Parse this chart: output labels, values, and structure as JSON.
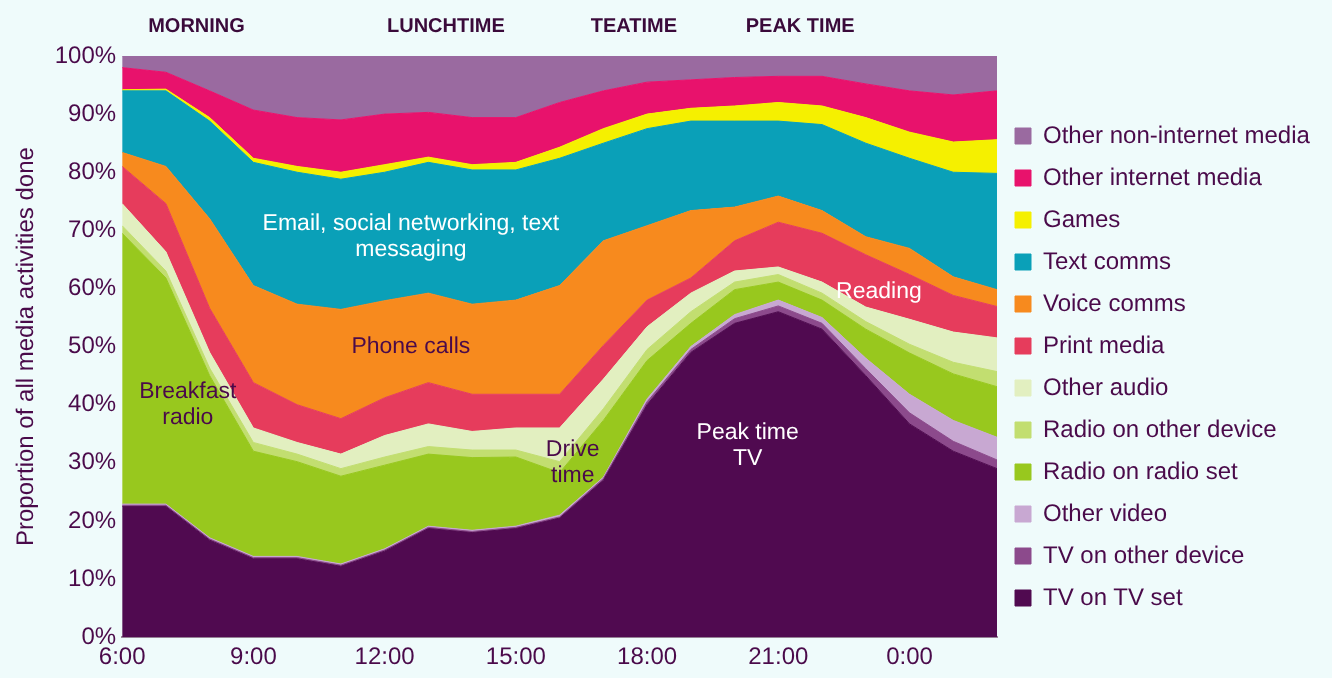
{
  "chart_data": {
    "type": "area",
    "stacked": true,
    "ylabel": "Proportion of all media activities done",
    "legend": "right",
    "grid": false,
    "marker": "none",
    "x": [
      6,
      7,
      8,
      9,
      10,
      11,
      12,
      13,
      14,
      15,
      16,
      17,
      18,
      19,
      20,
      21,
      22,
      23,
      24,
      25,
      26
    ],
    "xlim": [
      6,
      26
    ],
    "xticks": [
      {
        "value": 6,
        "label": "6:00"
      },
      {
        "value": 9,
        "label": "9:00"
      },
      {
        "value": 12,
        "label": "12:00"
      },
      {
        "value": 15,
        "label": "15:00"
      },
      {
        "value": 18,
        "label": "18:00"
      },
      {
        "value": 21,
        "label": "21:00"
      },
      {
        "value": 24,
        "label": "0:00"
      }
    ],
    "ylim": [
      0,
      100
    ],
    "yticks": [
      {
        "value": 0,
        "label": "0%"
      },
      {
        "value": 10,
        "label": "10%"
      },
      {
        "value": 20,
        "label": "20%"
      },
      {
        "value": 30,
        "label": "30%"
      },
      {
        "value": 40,
        "label": "40%"
      },
      {
        "value": 50,
        "label": "50%"
      },
      {
        "value": 60,
        "label": "60%"
      },
      {
        "value": 70,
        "label": "70%"
      },
      {
        "value": 80,
        "label": "80%"
      },
      {
        "value": 90,
        "label": "90%"
      },
      {
        "value": 100,
        "label": "100%"
      }
    ],
    "series": [
      {
        "name": "TV on TV set",
        "color": "#500a50",
        "values": [
          22.5,
          22.5,
          16.7,
          13.5,
          13.5,
          12.2,
          14.8,
          18.7,
          18,
          18.7,
          20.5,
          27,
          40,
          49,
          54,
          56,
          53,
          45,
          36.7,
          32,
          29
        ]
      },
      {
        "name": "TV on other device",
        "color": "#8c4a8c",
        "values": [
          0.2,
          0.2,
          0.2,
          0.2,
          0.2,
          0.2,
          0.2,
          0.2,
          0.2,
          0.2,
          0.2,
          0.3,
          0.5,
          0.5,
          0.8,
          1,
          1,
          1.2,
          1.9,
          1.7,
          1.5
        ]
      },
      {
        "name": "Other video",
        "color": "#c8a8d2",
        "values": [
          0.2,
          0.2,
          0.2,
          0.2,
          0.2,
          0.2,
          0.2,
          0.2,
          0.2,
          0.2,
          0.3,
          0.2,
          0.5,
          0.5,
          0.7,
          1,
          1,
          1.8,
          3.2,
          3.6,
          3.9
        ]
      },
      {
        "name": "Radio on radio set",
        "color": "#98c81e",
        "values": [
          46.6,
          38.9,
          27.9,
          18.1,
          16.3,
          15.1,
          14.4,
          12.4,
          12.5,
          11.9,
          7.3,
          9.8,
          6.6,
          4,
          4.3,
          3.1,
          3,
          5,
          7.1,
          8,
          8.7
        ]
      },
      {
        "name": "Radio on other device",
        "color": "#c2de70",
        "values": [
          1.3,
          1.2,
          1.3,
          1.5,
          1.3,
          1.3,
          1.4,
          1.3,
          1.3,
          1.2,
          1.9,
          2,
          1.9,
          2,
          1.3,
          1.3,
          1.2,
          1.3,
          1.5,
          2,
          2.6
        ]
      },
      {
        "name": "Other audio",
        "color": "#e2efc0",
        "values": [
          3.8,
          3.3,
          2.7,
          2.5,
          2,
          2.5,
          3.7,
          3.9,
          3.2,
          3.8,
          5.8,
          5.1,
          3.9,
          3.2,
          1.9,
          1.3,
          1.9,
          2.5,
          4.3,
          5.2,
          5.8
        ]
      },
      {
        "name": "Print media",
        "color": "#e63c5c",
        "values": [
          6.4,
          8.3,
          7.6,
          7.8,
          6.5,
          6.1,
          6.5,
          7.1,
          6.4,
          5.8,
          5.8,
          5.8,
          4.6,
          2.6,
          5.2,
          7.7,
          8.4,
          9,
          7.7,
          6.3,
          5.4
        ]
      },
      {
        "name": "Voice comms",
        "color": "#f78a1e",
        "values": [
          2.4,
          6.4,
          15.4,
          16.7,
          17.3,
          18.8,
          16.7,
          15.4,
          15.5,
          16.2,
          18.7,
          18,
          12.8,
          11.6,
          5.8,
          4.5,
          3.9,
          3.1,
          4.5,
          3.2,
          2.9
        ]
      },
      {
        "name": "Text comms",
        "color": "#0aa0b8",
        "values": [
          10.6,
          13,
          16.8,
          21.2,
          22.7,
          22.4,
          22.1,
          22.5,
          23.1,
          22.4,
          21.9,
          16.8,
          16.7,
          15.4,
          14.8,
          12.9,
          14.8,
          16.1,
          15.5,
          18,
          20
        ]
      },
      {
        "name": "Games",
        "color": "#f5f000",
        "values": [
          0.2,
          0.3,
          0.6,
          0.7,
          1,
          1.2,
          1.3,
          0.9,
          0.9,
          1.3,
          1.9,
          2.5,
          2.5,
          2.2,
          2.6,
          3.2,
          3.2,
          4.4,
          4.5,
          5.2,
          5.8
        ]
      },
      {
        "name": "Other internet media",
        "color": "#e8126c",
        "values": [
          3.8,
          2.9,
          4.6,
          8.3,
          8.4,
          9,
          8.7,
          7.7,
          8.1,
          7.7,
          7.7,
          6.5,
          5.5,
          4.9,
          4.9,
          4.5,
          5.1,
          5.8,
          7.1,
          8.1,
          8.4
        ]
      },
      {
        "name": "Other non-internet media",
        "color": "#9a6aa0",
        "values": [
          2,
          2.8,
          6,
          9.3,
          10.6,
          11,
          10,
          9.7,
          10.6,
          10.6,
          8,
          6,
          4.5,
          4.1,
          3.7,
          3.5,
          3.5,
          4.8,
          6,
          6.7,
          6
        ]
      }
    ],
    "annotations": [
      "MORNING",
      "LUNCHTIME",
      "TEATIME",
      "PEAK TIME",
      "Breakfast radio",
      "Email, social networking, text messaging",
      "Phone calls",
      "Drive time",
      "Peak time TV",
      "Reading"
    ]
  }
}
